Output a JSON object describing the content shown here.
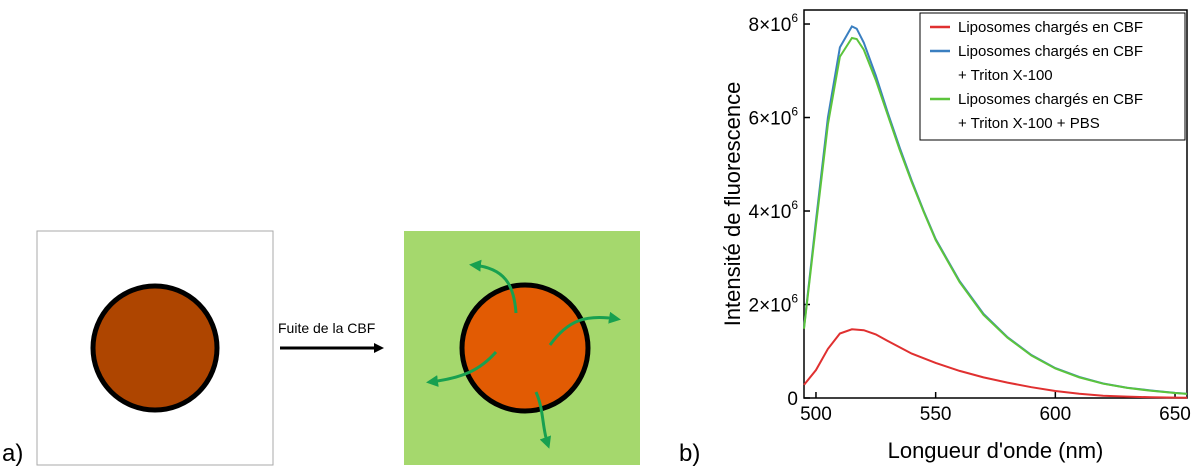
{
  "panel_labels": {
    "a": "a)",
    "b": "b)"
  },
  "schematic": {
    "arrow_label": "Fuite de la CBF",
    "colors": {
      "box_before": "#ffffff",
      "box_after": "#a5d86d",
      "liposome_before": "#ae4500",
      "liposome_after": "#e25b03",
      "membrane": "#000000",
      "leak_arrows": "#18a050"
    },
    "icons": [
      "liposome-circle",
      "leak-arrow-icon",
      "right-arrow-icon"
    ]
  },
  "chart_data": {
    "type": "line",
    "xlabel": "Longueur d'onde (nm)",
    "ylabel": "Intensité de fluorescence",
    "xlim": [
      495,
      655
    ],
    "ylim": [
      0,
      8300000
    ],
    "x_ticks": [
      500,
      550,
      600,
      650
    ],
    "y_ticks": [
      {
        "value": 0,
        "mantissa": "0",
        "exp": ""
      },
      {
        "value": 2000000,
        "mantissa": "2×10",
        "exp": "6"
      },
      {
        "value": 4000000,
        "mantissa": "4×10",
        "exp": "6"
      },
      {
        "value": 6000000,
        "mantissa": "6×10",
        "exp": "6"
      },
      {
        "value": 8000000,
        "mantissa": "8×10",
        "exp": "6"
      }
    ],
    "grid": false,
    "legend_position": "top-right",
    "series": [
      {
        "name": "Liposomes chargés en CBF",
        "name_lines": [
          "Liposomes chargés en CBF"
        ],
        "color": "#e03030",
        "x": [
          495,
          500,
          505,
          510,
          515,
          520,
          525,
          530,
          540,
          550,
          560,
          570,
          580,
          590,
          600,
          610,
          620,
          630,
          640,
          650,
          655
        ],
        "y": [
          280000,
          600000,
          1050000,
          1380000,
          1470000,
          1450000,
          1360000,
          1220000,
          950000,
          750000,
          580000,
          440000,
          330000,
          230000,
          150000,
          90000,
          50000,
          30000,
          15000,
          8000,
          5000
        ]
      },
      {
        "name": "Liposomes chargés en CBF + Triton X-100",
        "name_lines": [
          "Liposomes chargés en CBF",
          "+ Triton X-100"
        ],
        "color": "#3a7fc0",
        "x": [
          495,
          500,
          505,
          510,
          515,
          517,
          520,
          525,
          530,
          535,
          540,
          545,
          550,
          555,
          560,
          570,
          580,
          590,
          600,
          610,
          620,
          630,
          640,
          650,
          655
        ],
        "y": [
          1500000,
          3800000,
          6000000,
          7500000,
          7950000,
          7900000,
          7600000,
          6900000,
          6100000,
          5350000,
          4650000,
          4000000,
          3400000,
          2950000,
          2500000,
          1800000,
          1300000,
          920000,
          640000,
          450000,
          310000,
          220000,
          160000,
          110000,
          90000
        ]
      },
      {
        "name": "Liposomes chargés en CBF + Triton X-100 + PBS",
        "name_lines": [
          "Liposomes chargés en CBF",
          "+ Triton X-100 + PBS"
        ],
        "color": "#5cc43c",
        "x": [
          495,
          500,
          505,
          510,
          515,
          517,
          520,
          525,
          530,
          535,
          540,
          545,
          550,
          555,
          560,
          570,
          580,
          590,
          600,
          610,
          620,
          630,
          640,
          650,
          655
        ],
        "y": [
          1480000,
          3700000,
          5850000,
          7300000,
          7700000,
          7680000,
          7450000,
          6800000,
          6050000,
          5300000,
          4620000,
          3980000,
          3380000,
          2930000,
          2480000,
          1780000,
          1290000,
          910000,
          630000,
          440000,
          305000,
          215000,
          155000,
          108000,
          88000
        ]
      }
    ]
  }
}
